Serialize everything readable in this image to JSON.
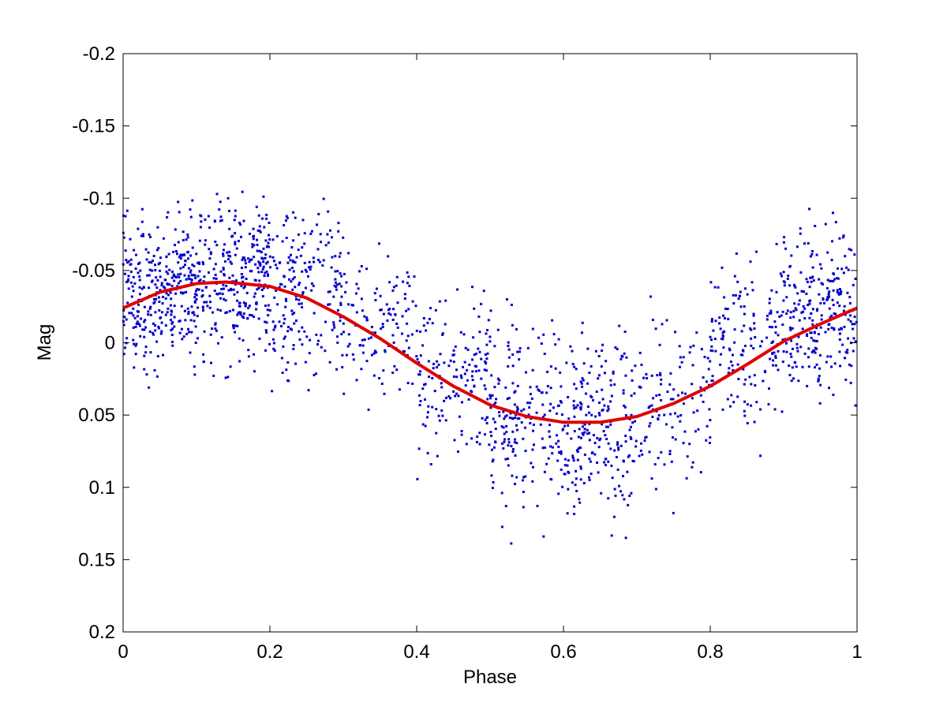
{
  "chart_data": {
    "type": "scatter",
    "title": "",
    "xlabel": "Phase",
    "ylabel": "Mag",
    "xlim": [
      0,
      1
    ],
    "ylim": [
      -0.2,
      0.2
    ],
    "y_reversed": true,
    "grid": false,
    "x_ticks": [
      0,
      0.2,
      0.4,
      0.6,
      0.8,
      1
    ],
    "x_tick_labels": [
      "0",
      "0.2",
      "0.4",
      "0.6",
      "0.8",
      "1"
    ],
    "y_ticks": [
      -0.2,
      -0.15,
      -0.1,
      -0.05,
      0,
      0.05,
      0.1,
      0.15,
      0.2
    ],
    "y_tick_labels": [
      "-0.2",
      "-0.15",
      "-0.1",
      "-0.05",
      "0",
      "0.05",
      "0.1",
      "0.15",
      "0.2"
    ],
    "colors": {
      "points": "#0000cc",
      "fit": "#e00000",
      "axes": "#000000"
    },
    "series": [
      {
        "kind": "points",
        "clusters": [
          {
            "x_range": [
              0.0,
              0.1
            ],
            "y_center": -0.035,
            "y_spread": 0.045,
            "count": 320
          },
          {
            "x_range": [
              0.1,
              0.2
            ],
            "y_center": -0.045,
            "y_spread": 0.05,
            "count": 300
          },
          {
            "x_range": [
              0.2,
              0.3
            ],
            "y_center": -0.035,
            "y_spread": 0.05,
            "count": 200
          },
          {
            "x_range": [
              0.3,
              0.4
            ],
            "y_center": -0.01,
            "y_spread": 0.045,
            "count": 120
          },
          {
            "x_range": [
              0.4,
              0.5
            ],
            "y_center": 0.025,
            "y_spread": 0.055,
            "count": 160
          },
          {
            "x_range": [
              0.5,
              0.6
            ],
            "y_center": 0.05,
            "y_spread": 0.055,
            "count": 200
          },
          {
            "x_range": [
              0.6,
              0.7
            ],
            "y_center": 0.06,
            "y_spread": 0.055,
            "count": 220
          },
          {
            "x_range": [
              0.7,
              0.8
            ],
            "y_center": 0.04,
            "y_spread": 0.05,
            "count": 120
          },
          {
            "x_range": [
              0.8,
              0.9
            ],
            "y_center": 0.0,
            "y_spread": 0.05,
            "count": 160
          },
          {
            "x_range": [
              0.9,
              1.0
            ],
            "y_center": -0.02,
            "y_spread": 0.05,
            "count": 260
          }
        ]
      },
      {
        "kind": "line",
        "points": [
          [
            0.0,
            -0.024
          ],
          [
            0.05,
            -0.035
          ],
          [
            0.1,
            -0.041
          ],
          [
            0.14,
            -0.042
          ],
          [
            0.2,
            -0.039
          ],
          [
            0.25,
            -0.031
          ],
          [
            0.3,
            -0.018
          ],
          [
            0.35,
            -0.003
          ],
          [
            0.4,
            0.014
          ],
          [
            0.45,
            0.03
          ],
          [
            0.5,
            0.043
          ],
          [
            0.55,
            0.051
          ],
          [
            0.6,
            0.055
          ],
          [
            0.65,
            0.055
          ],
          [
            0.7,
            0.051
          ],
          [
            0.75,
            0.042
          ],
          [
            0.8,
            0.03
          ],
          [
            0.85,
            0.015
          ],
          [
            0.9,
            -0.001
          ],
          [
            0.95,
            -0.013
          ],
          [
            1.0,
            -0.024
          ]
        ]
      }
    ]
  }
}
